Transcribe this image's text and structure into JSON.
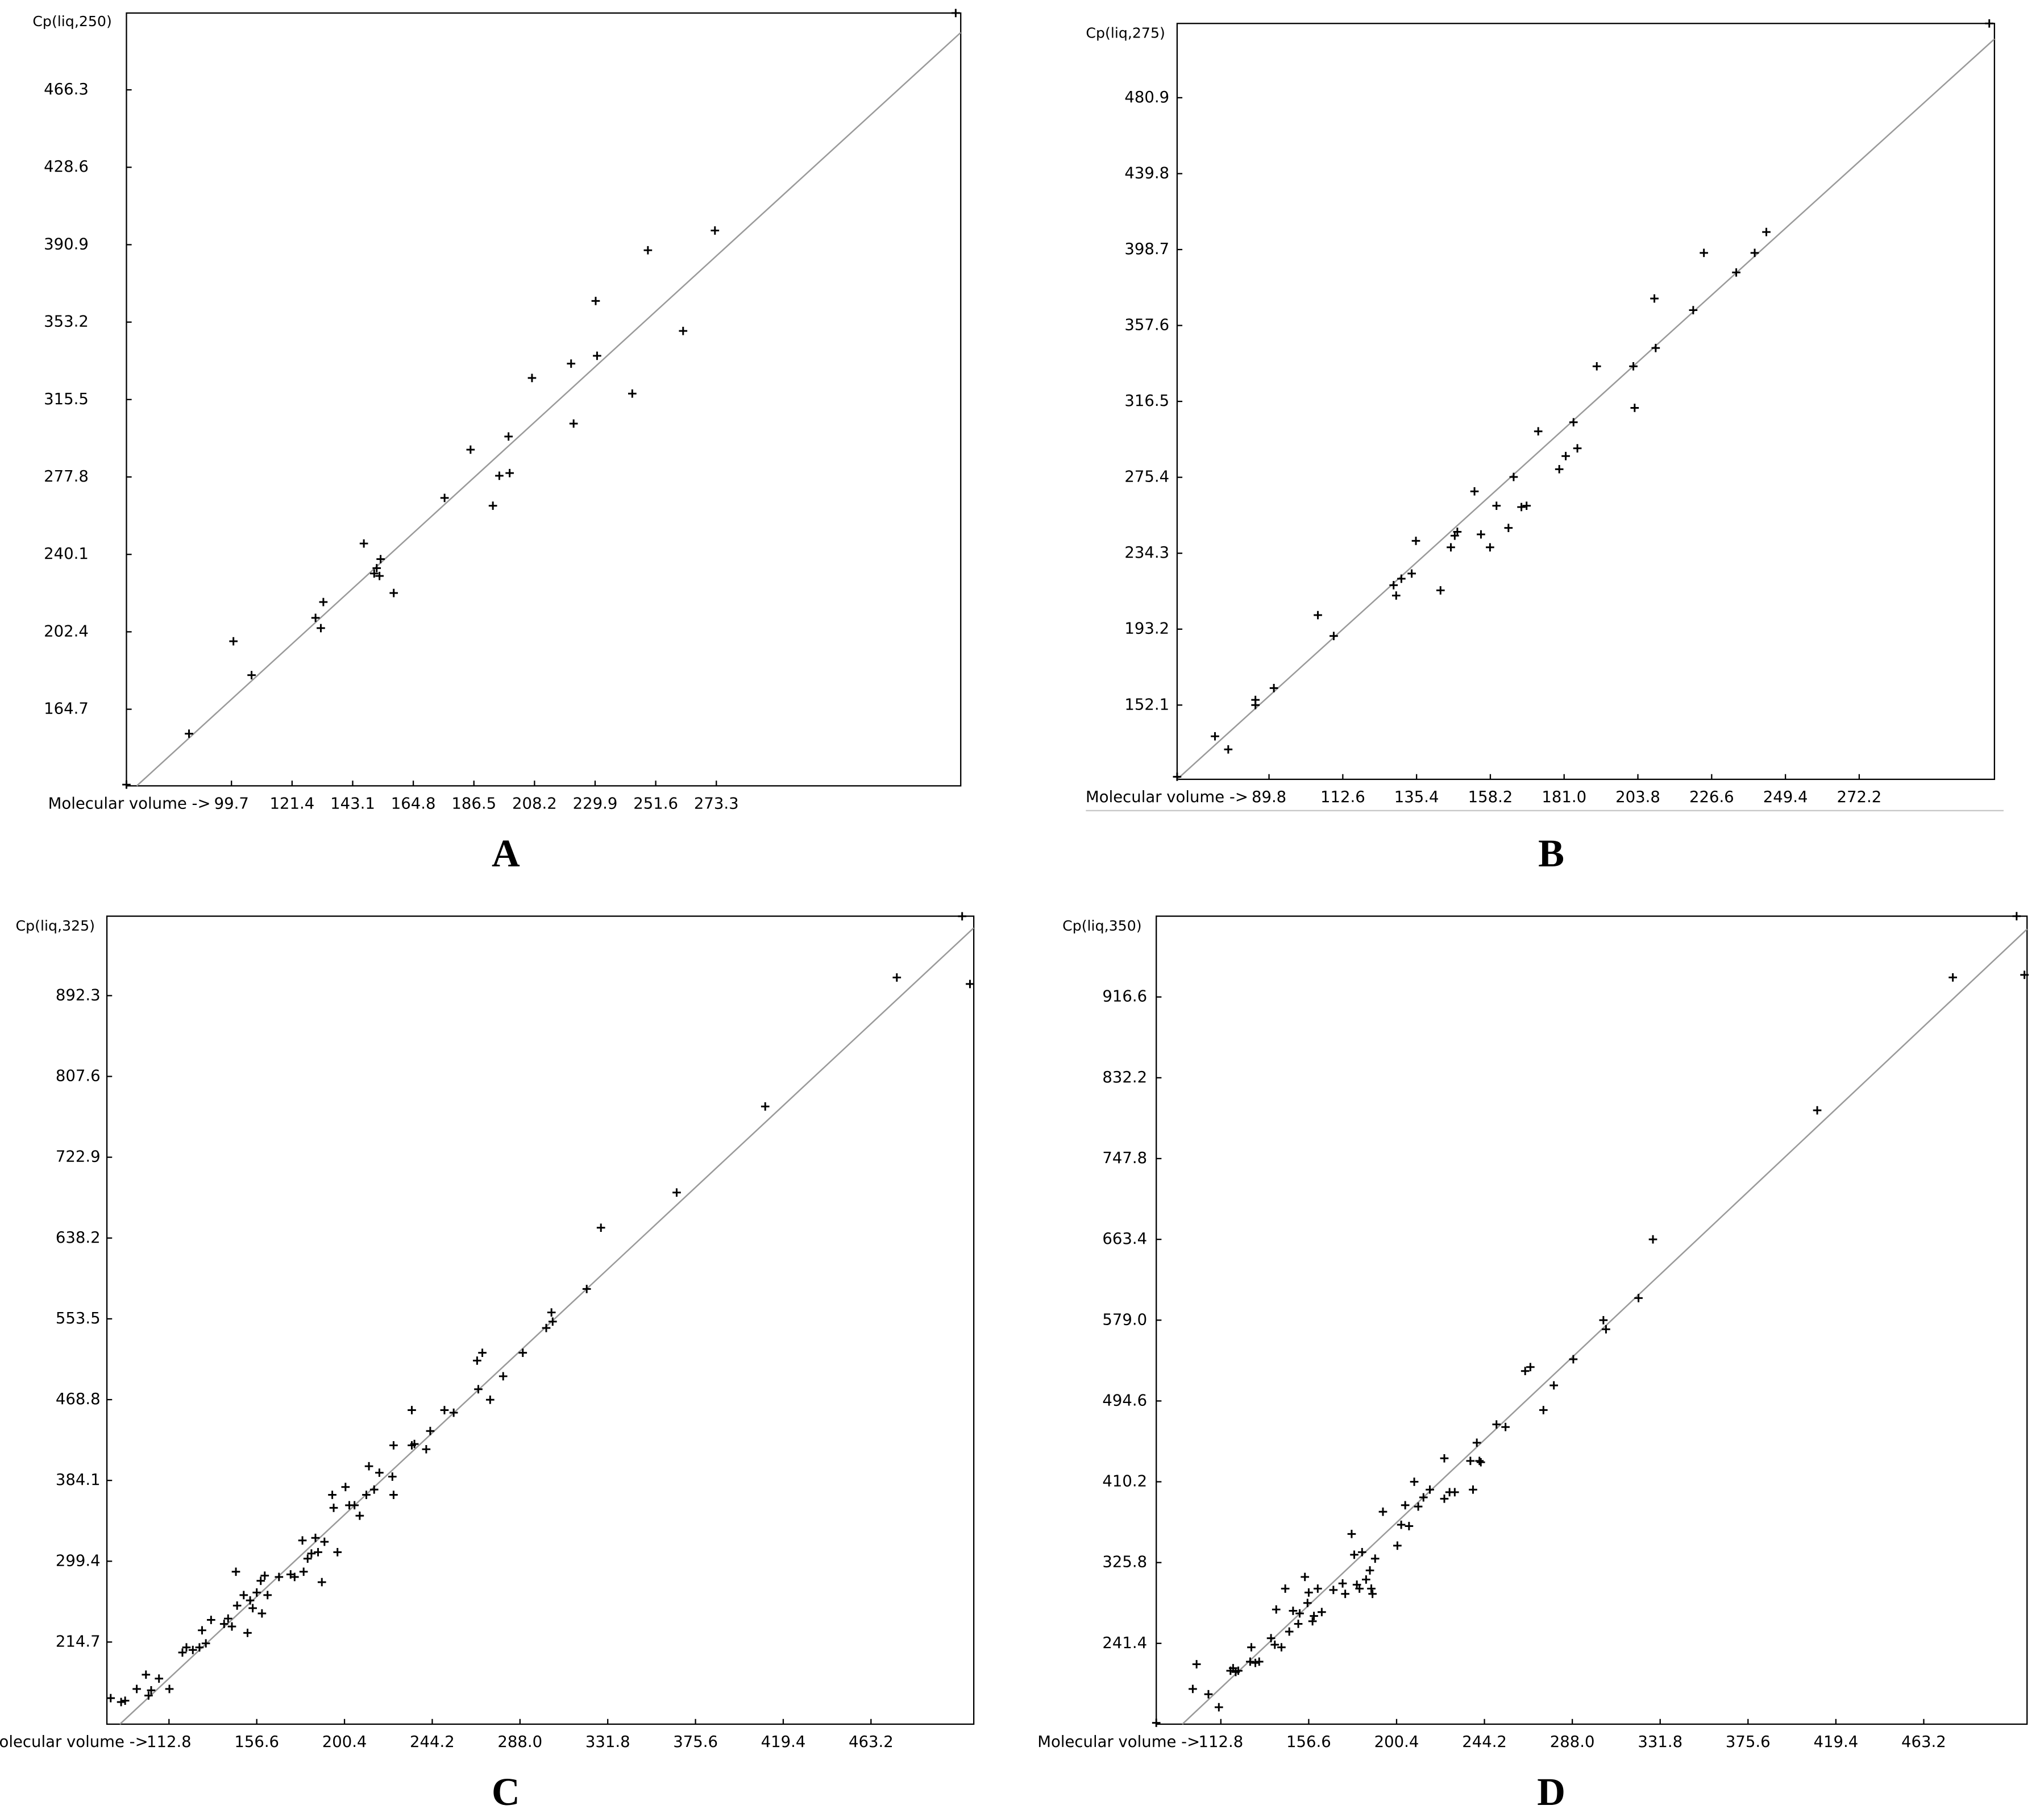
{
  "chart_data": [
    {
      "type": "scatter",
      "panel": "A",
      "y_label": "Cp(liq,250)",
      "x_label": "Molecular volume ->",
      "color": "#000000",
      "x": [
        62.1,
        84.5,
        100.4,
        106.9,
        129.8,
        131.7,
        132.6,
        147.1,
        151.7,
        152.7,
        153.1,
        150.8,
        157.8,
        176.0,
        185.3,
        193.3,
        195.6,
        199.3,
        198.9,
        207.3,
        221.3,
        222.2,
        230.1,
        230.6,
        243.2,
        248.8,
        261.4,
        272.8,
        359.0
      ],
      "values": [
        128.0,
        152.8,
        197.8,
        181.3,
        209.2,
        204.2,
        216.9,
        245.4,
        233.4,
        229.6,
        237.8,
        230.8,
        221.3,
        267.6,
        291.1,
        263.8,
        278.4,
        279.7,
        297.5,
        326.0,
        333.0,
        303.8,
        363.5,
        336.8,
        318.4,
        388.2,
        348.9,
        397.8,
        503.7
      ],
      "fit": {
        "x": [
          65.8,
          360.8
        ],
        "values": [
          127.4,
          494.2
        ],
        "color": "#9a9a9a"
      },
      "xlim": [
        62.1,
        360.8
      ],
      "ylim": [
        127.4,
        503.7
      ],
      "xticks": [
        99.7,
        121.4,
        143.1,
        164.8,
        186.5,
        208.2,
        229.9,
        251.6,
        273.3
      ],
      "yticks": [
        466.3,
        428.6,
        390.9,
        353.2,
        315.5,
        277.8,
        240.1,
        202.4,
        164.7
      ]
    },
    {
      "type": "scatter",
      "panel": "B",
      "y_label": "Cp(liq,275)",
      "x_label": "Molecular volume ->",
      "color": "#000000",
      "x": [
        61.4,
        73.1,
        77.2,
        85.6,
        85.6,
        91.3,
        104.9,
        109.8,
        128.3,
        129.1,
        130.7,
        133.9,
        135.2,
        142.8,
        146.0,
        147.2,
        148.0,
        153.3,
        155.3,
        158.1,
        160.1,
        163.8,
        165.4,
        167.8,
        169.4,
        173.0,
        179.5,
        181.5,
        183.9,
        185.1,
        191.1,
        202.4,
        202.8,
        208.9,
        209.3,
        220.9,
        224.2,
        234.2,
        239.9,
        243.5,
        312.4
      ],
      "values": [
        113.3,
        135.2,
        128.1,
        154.9,
        152.1,
        161.3,
        200.8,
        189.5,
        217.0,
        211.4,
        220.5,
        223.3,
        241.0,
        214.2,
        237.5,
        243.8,
        245.9,
        267.8,
        244.5,
        237.5,
        260.0,
        248.0,
        275.6,
        259.3,
        260.0,
        300.3,
        279.8,
        286.9,
        305.2,
        291.1,
        335.5,
        335.5,
        313.0,
        372.2,
        345.4,
        365.9,
        396.9,
        386.3,
        396.9,
        408.2,
        521.1
      ],
      "fit": {
        "x": [
          61.4,
          314.0
        ],
        "values": [
          111.9,
          512.7
        ],
        "color": "#9a9a9a"
      },
      "xlim": [
        61.4,
        314.0
      ],
      "ylim": [
        111.9,
        521.1
      ],
      "xticks": [
        89.8,
        112.6,
        135.4,
        158.2,
        {
          "value": 181,
          "label": "181.0"
        },
        203.8,
        226.6,
        249.4,
        272.2
      ],
      "yticks": [
        480.9,
        439.8,
        398.7,
        357.6,
        316.5,
        275.4,
        234.3,
        193.2,
        152.1
      ]
    },
    {
      "type": "scatter",
      "panel": "C",
      "y_label": "Cp(liq,325)",
      "x_label": "Molecular volume ->",
      "color": "#000000",
      "x": [
        83.7,
        88.9,
        90.9,
        96.7,
        101.3,
        102.6,
        103.9,
        107.8,
        113.0,
        119.5,
        121.5,
        124.7,
        128.0,
        129.3,
        131.2,
        133.8,
        140.3,
        142.3,
        144.2,
        146.2,
        146.8,
        150.1,
        152.0,
        153.3,
        154.6,
        156.6,
        158.6,
        159.2,
        160.6,
        162.0,
        167.7,
        173.5,
        175.5,
        179.4,
        180.0,
        182.0,
        183.9,
        185.9,
        187.2,
        189.1,
        190.4,
        194.3,
        195.0,
        196.9,
        200.9,
        202.8,
        205.4,
        208.0,
        211.3,
        212.6,
        215.2,
        217.8,
        224.3,
        224.9,
        224.9,
        234.0,
        234.0,
        235.3,
        241.2,
        243.2,
        250.3,
        254.9,
        266.6,
        267.2,
        269.2,
        273.1,
        279.6,
        289.4,
        301.1,
        303.7,
        304.3,
        321.3,
        328.4,
        366.2,
        410.4,
        476.1,
        512.6,
        508.7
      ],
      "values": [
        155.9,
        151.8,
        153.2,
        165.5,
        180.5,
        158.6,
        164.1,
        176.4,
        165.5,
        203.7,
        209.1,
        206.4,
        209.1,
        227.0,
        213.3,
        237.9,
        233.7,
        239.3,
        231.0,
        288.4,
        252.9,
        263.9,
        224.3,
        258.3,
        250.2,
        266.6,
        278.9,
        244.7,
        284.3,
        263.9,
        282.9,
        285.6,
        282.9,
        321.2,
        288.4,
        302.1,
        307.5,
        323.9,
        308.9,
        277.5,
        319.8,
        369.0,
        355.4,
        308.9,
        377.2,
        358.1,
        358.1,
        347.1,
        369.0,
        399.0,
        374.5,
        392.2,
        388.1,
        369.0,
        420.9,
        457.8,
        420.9,
        422.3,
        416.8,
        435.9,
        457.8,
        455.1,
        509.7,
        479.7,
        517.9,
        468.7,
        493.3,
        517.9,
        543.9,
        560.2,
        550.6,
        584.8,
        649.0,
        685.9,
        776.1,
        911.3,
        904.5,
        975.5
      ],
      "fit": {
        "x": [
          88.3,
          514.5
        ],
        "values": [
          128.6,
          963.3
        ],
        "color": "#9a9a9a"
      },
      "xlim": [
        81.8,
        514.5
      ],
      "ylim": [
        128.6,
        975.6
      ],
      "xticks": [
        112.8,
        156.6,
        200.4,
        244.2,
        {
          "value": 288,
          "label": "288.0"
        },
        331.8,
        375.6,
        419.4,
        463.2
      ],
      "yticks": [
        892.3,
        807.6,
        722.9,
        638.2,
        553.5,
        468.8,
        384.1,
        299.4,
        214.7
      ]
    },
    {
      "type": "scatter",
      "panel": "D",
      "y_label": "Cp(liq,350)",
      "x_label": "Molecular volume ->",
      "color": "#000000",
      "x": [
        80.6,
        98.8,
        100.7,
        106.6,
        111.8,
        117.6,
        118.9,
        120.2,
        121.5,
        127.4,
        128.0,
        130.0,
        131.9,
        137.8,
        139.7,
        140.4,
        143.0,
        144.9,
        146.9,
        148.8,
        151.4,
        152.1,
        154.7,
        156.0,
        156.6,
        158.5,
        159.2,
        161.1,
        163.1,
        168.9,
        173.5,
        174.8,
        178.0,
        179.3,
        180.6,
        181.9,
        183.2,
        185.2,
        187.1,
        187.8,
        188.4,
        189.7,
        193.6,
        200.8,
        202.7,
        204.7,
        206.6,
        209.2,
        211.2,
        213.8,
        217.0,
        224.2,
        224.2,
        226.8,
        229.4,
        237.2,
        238.5,
        240.4,
        241.7,
        242.4,
        250.2,
        254.7,
        264.5,
        267.1,
        273.6,
        278.8,
        288.5,
        303.5,
        304.8,
        321.0,
        328.2,
        410.1,
        477.7,
        513.4,
        509.5
      ],
      "values": [
        158.4,
        193.8,
        219.6,
        188.3,
        174.7,
        212.8,
        215.5,
        211.5,
        212.8,
        222.3,
        237.3,
        221.0,
        222.3,
        246.8,
        240.0,
        276.8,
        237.3,
        298.6,
        253.7,
        275.4,
        261.8,
        272.7,
        310.8,
        283.6,
        294.5,
        264.5,
        270.0,
        298.6,
        274.1,
        297.2,
        304.0,
        293.1,
        355.7,
        334.0,
        302.7,
        298.6,
        336.7,
        308.1,
        317.6,
        298.6,
        293.1,
        329.9,
        378.9,
        343.5,
        365.3,
        385.7,
        363.9,
        410.2,
        384.3,
        393.9,
        402.0,
        434.7,
        392.5,
        399.3,
        399.3,
        432.0,
        402.0,
        451.0,
        432.0,
        430.6,
        470.1,
        467.4,
        525.9,
        530.0,
        485.1,
        510.9,
        538.2,
        579.0,
        569.5,
        602.1,
        663.4,
        798.2,
        937.0,
        939.7,
        1001.0
      ],
      "fit": {
        "x": [
          93.6,
          514.7
        ],
        "values": [
          157.0,
          987.4
        ],
        "color": "#9a9a9a"
      },
      "xlim": [
        80.6,
        514.7
      ],
      "ylim": [
        157.0,
        1001.0
      ],
      "xticks": [
        112.8,
        156.6,
        200.4,
        244.2,
        {
          "value": 288,
          "label": "288.0"
        },
        331.8,
        375.6,
        419.4,
        463.2
      ],
      "yticks": [
        916.6,
        832.2,
        747.8,
        663.4,
        {
          "value": 579,
          "label": "579.0"
        },
        494.6,
        410.2,
        325.8,
        241.4
      ]
    }
  ]
}
